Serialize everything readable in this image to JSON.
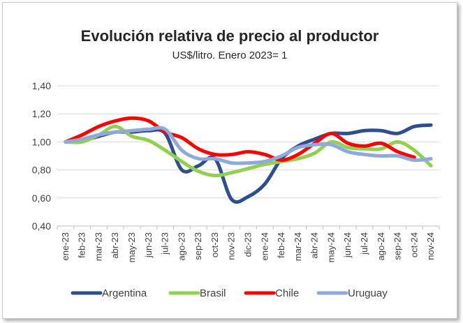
{
  "chart_data": {
    "type": "line",
    "title": "Evolución relativa de precio al productor",
    "subtitle": "US$/litro. Enero 2023= 1",
    "xlabel": "",
    "ylabel": "",
    "categories": [
      "ene-23",
      "feb-23",
      "mar-23",
      "abr-23",
      "may-23",
      "jun-23",
      "jul-23",
      "ago-23",
      "sep-23",
      "oct-23",
      "nov-23",
      "dic-23",
      "ene-24",
      "feb-24",
      "mar-24",
      "abr-24",
      "may-24",
      "jun-24",
      "jul-24",
      "ago-24",
      "sep-24",
      "oct-24",
      "nov-24"
    ],
    "ylim": [
      0.4,
      1.4
    ],
    "yticks": [
      "0,40",
      "0,60",
      "0,80",
      "1,00",
      "1,20",
      "1,40"
    ],
    "grid": true,
    "legend_position": "bottom",
    "series": [
      {
        "name": "Argentina",
        "color": "#2E4F8F",
        "values": [
          1.0,
          1.01,
          1.04,
          1.07,
          1.07,
          1.08,
          1.06,
          0.8,
          0.83,
          0.88,
          0.59,
          0.61,
          0.7,
          0.88,
          0.97,
          1.02,
          1.06,
          1.06,
          1.08,
          1.08,
          1.06,
          1.11,
          1.12
        ]
      },
      {
        "name": "Brasil",
        "color": "#92D050",
        "values": [
          1.0,
          1.0,
          1.05,
          1.11,
          1.04,
          1.01,
          0.94,
          0.86,
          0.79,
          0.76,
          0.78,
          0.81,
          0.84,
          0.86,
          0.88,
          0.92,
          1.0,
          0.96,
          0.95,
          0.95,
          1.0,
          0.94,
          0.83
        ]
      },
      {
        "name": "Chile",
        "color": "#FF0000",
        "values": [
          1.0,
          1.05,
          1.11,
          1.15,
          1.17,
          1.15,
          1.07,
          1.03,
          0.95,
          0.91,
          0.91,
          0.93,
          0.91,
          0.87,
          0.91,
          0.99,
          1.06,
          0.99,
          0.97,
          0.99,
          0.93,
          0.89,
          null
        ]
      },
      {
        "name": "Uruguay",
        "color": "#8EA9DB",
        "values": [
          1.0,
          1.02,
          1.05,
          1.07,
          1.08,
          1.09,
          1.09,
          0.94,
          0.88,
          0.88,
          0.85,
          0.85,
          0.86,
          0.9,
          0.96,
          0.98,
          0.98,
          0.93,
          0.91,
          0.9,
          0.9,
          0.87,
          0.88
        ]
      }
    ]
  }
}
